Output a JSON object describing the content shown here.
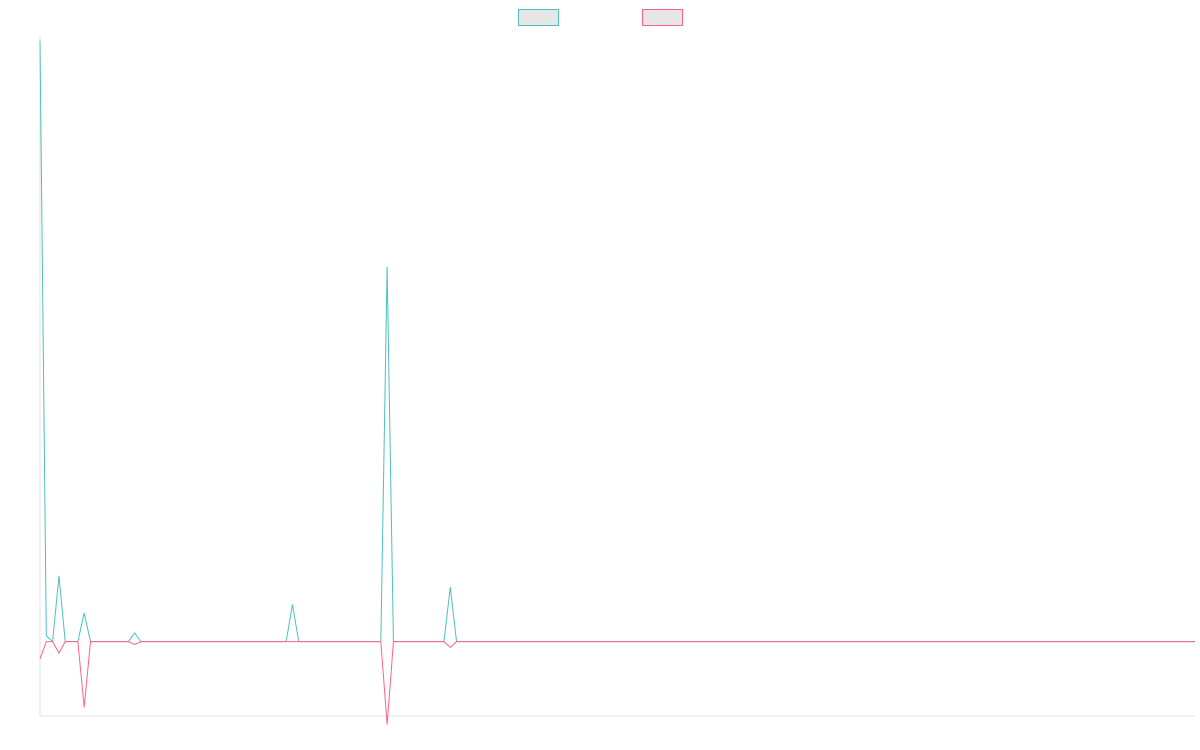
{
  "chart_data": {
    "type": "line",
    "legend": {
      "placement": "top-center",
      "entries": [
        {
          "name": "",
          "color": "#4bc0c0",
          "fill": "#e6e6e6"
        },
        {
          "name": "",
          "color": "#ff6384",
          "fill": "#e6e6e6"
        }
      ]
    },
    "grid": false,
    "xlim": [
      0,
      183
    ],
    "ylim": [
      -1.3,
      10.6
    ],
    "x": [
      0,
      1,
      2,
      3,
      4,
      5,
      6,
      7,
      8,
      9,
      10,
      11,
      12,
      13,
      14,
      15,
      16,
      17,
      18,
      19,
      20,
      21,
      22,
      23,
      24,
      25,
      26,
      27,
      28,
      29,
      30,
      31,
      32,
      33,
      34,
      35,
      36,
      37,
      38,
      39,
      40,
      41,
      42,
      43,
      44,
      45,
      46,
      47,
      48,
      49,
      50,
      51,
      52,
      53,
      54,
      55,
      56,
      57,
      58,
      59,
      60,
      61,
      62,
      63,
      64,
      65,
      66,
      67,
      68,
      69,
      70,
      71,
      72,
      73,
      74,
      75,
      76,
      77,
      78,
      79,
      80,
      81,
      82,
      83,
      84,
      85,
      86,
      87,
      88,
      89,
      90,
      91,
      92,
      93,
      94,
      95,
      96,
      97,
      98,
      99,
      100,
      101,
      102,
      103,
      104,
      105,
      106,
      107,
      108,
      109,
      110,
      111,
      112,
      113,
      114,
      115,
      116,
      117,
      118,
      119,
      120,
      121,
      122,
      123,
      124,
      125,
      126,
      127,
      128,
      129,
      130,
      131,
      132,
      133,
      134,
      135,
      136,
      137,
      138,
      139,
      140,
      141,
      142,
      143,
      144,
      145,
      146,
      147,
      148,
      149,
      150,
      151,
      152,
      153,
      154,
      155,
      156,
      157,
      158,
      159,
      160,
      161,
      162,
      163,
      164,
      165,
      166,
      167,
      168,
      169,
      170,
      171,
      172,
      173,
      174,
      175,
      176,
      177,
      178,
      179,
      180,
      181,
      182,
      183
    ],
    "series": [
      {
        "color": "#4bc0c0",
        "values": [
          10.5,
          0.1,
          0.0,
          1.15,
          0.0,
          0.0,
          0.0,
          0.5,
          0.0,
          0.0,
          0.0,
          0.0,
          0.0,
          0.0,
          0.0,
          0.15,
          0.0,
          0.0,
          0.0,
          0.0,
          0.0,
          0.0,
          0.0,
          0.0,
          0.0,
          0.0,
          0.0,
          0.0,
          0.0,
          0.0,
          0.0,
          0.0,
          0.0,
          0.0,
          0.0,
          0.0,
          0.0,
          0.0,
          0.0,
          0.0,
          0.65,
          0.0,
          0.0,
          0.0,
          0.0,
          0.0,
          0.0,
          0.0,
          0.0,
          0.0,
          0.0,
          0.0,
          0.0,
          0.0,
          0.0,
          6.55,
          0.0,
          0.0,
          0.0,
          0.0,
          0.0,
          0.0,
          0.0,
          0.0,
          0.0,
          0.95,
          0.0,
          0.0,
          0.0,
          0.0,
          0.0,
          0.0,
          0.0,
          0.0,
          0.0,
          0.0,
          0.0,
          0.0,
          0.0,
          0.0,
          0.0,
          0.0,
          0.0,
          0.0,
          0.0,
          0.0,
          0.0,
          0.0,
          0.0,
          0.0,
          0.0,
          0.0,
          0.0,
          0.0,
          0.0,
          0.0,
          0.0,
          0.0,
          0.0,
          0.0,
          0.0,
          0.0,
          0.0,
          0.0,
          0.0,
          0.0,
          0.0,
          0.0,
          0.0,
          0.0,
          0.0,
          0.0,
          0.0,
          0.0,
          0.0,
          0.0,
          0.0,
          0.0,
          0.0,
          0.0,
          0.0,
          0.0,
          0.0,
          0.0,
          0.0,
          0.0,
          0.0,
          0.0,
          0.0,
          0.0,
          0.0,
          0.0,
          0.0,
          0.0,
          0.0,
          0.0,
          0.0,
          0.0,
          0.0,
          0.0,
          0.0,
          0.0,
          0.0,
          0.0,
          0.0,
          0.0,
          0.0,
          0.0,
          0.0,
          0.0,
          0.0,
          0.0,
          0.0,
          0.0,
          0.0,
          0.0,
          0.0,
          0.0,
          0.0,
          0.0,
          0.0,
          0.0,
          0.0,
          0.0,
          0.0,
          0.0,
          0.0,
          0.0,
          0.0,
          0.0,
          0.0,
          0.0,
          0.0,
          0.0,
          0.0,
          0.0,
          0.0,
          0.0,
          0.0,
          0.0,
          0.0,
          0.0,
          0.0,
          0.0
        ]
      },
      {
        "color": "#ff6384",
        "values": [
          -0.3,
          0.0,
          0.0,
          -0.2,
          0.0,
          0.0,
          0.0,
          -1.15,
          0.0,
          0.0,
          0.0,
          0.0,
          0.0,
          0.0,
          0.0,
          -0.05,
          0.0,
          0.0,
          0.0,
          0.0,
          0.0,
          0.0,
          0.0,
          0.0,
          0.0,
          0.0,
          0.0,
          0.0,
          0.0,
          0.0,
          0.0,
          0.0,
          0.0,
          0.0,
          0.0,
          0.0,
          0.0,
          0.0,
          0.0,
          0.0,
          0.0,
          0.0,
          0.0,
          0.0,
          0.0,
          0.0,
          0.0,
          0.0,
          0.0,
          0.0,
          0.0,
          0.0,
          0.0,
          0.0,
          0.0,
          -1.45,
          0.0,
          0.0,
          0.0,
          0.0,
          0.0,
          0.0,
          0.0,
          0.0,
          0.0,
          -0.1,
          0.0,
          0.0,
          0.0,
          0.0,
          0.0,
          0.0,
          0.0,
          0.0,
          0.0,
          0.0,
          0.0,
          0.0,
          0.0,
          0.0,
          0.0,
          0.0,
          0.0,
          0.0,
          0.0,
          0.0,
          0.0,
          0.0,
          0.0,
          0.0,
          0.0,
          0.0,
          0.0,
          0.0,
          0.0,
          0.0,
          0.0,
          0.0,
          0.0,
          0.0,
          0.0,
          0.0,
          0.0,
          0.0,
          0.0,
          0.0,
          0.0,
          0.0,
          0.0,
          0.0,
          0.0,
          0.0,
          0.0,
          0.0,
          0.0,
          0.0,
          0.0,
          0.0,
          0.0,
          0.0,
          0.0,
          0.0,
          0.0,
          0.0,
          0.0,
          0.0,
          0.0,
          0.0,
          0.0,
          0.0,
          0.0,
          0.0,
          0.0,
          0.0,
          0.0,
          0.0,
          0.0,
          0.0,
          0.0,
          0.0,
          0.0,
          0.0,
          0.0,
          0.0,
          0.0,
          0.0,
          0.0,
          0.0,
          0.0,
          0.0,
          0.0,
          0.0,
          0.0,
          0.0,
          0.0,
          0.0,
          0.0,
          0.0,
          0.0,
          0.0,
          0.0,
          0.0,
          0.0,
          0.0,
          0.0,
          0.0,
          0.0,
          0.0,
          0.0,
          0.0,
          0.0,
          0.0,
          0.0,
          0.0,
          0.0,
          0.0,
          0.0,
          0.0,
          0.0,
          0.0,
          0.0,
          0.0,
          0.0,
          0.0
        ]
      }
    ]
  }
}
